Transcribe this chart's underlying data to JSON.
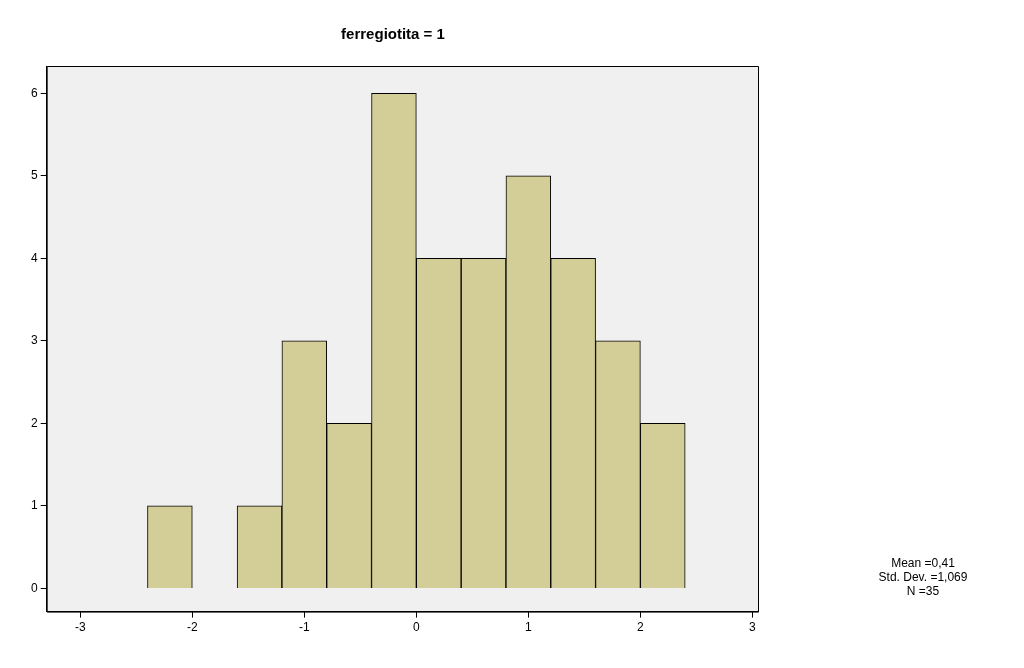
{
  "chart_data": {
    "type": "histogram",
    "title": "ferregiotita = 1",
    "bins": [
      -2.4,
      -2.0,
      -1.6,
      -1.2,
      -0.8,
      -0.4,
      0,
      0.4,
      0.8,
      1.2,
      1.6,
      2.0,
      2.4
    ],
    "values": [
      1,
      0,
      1,
      3,
      2,
      6,
      4,
      4,
      5,
      4,
      3,
      2
    ],
    "color": "#d3ce97",
    "xlim": [
      -3.3,
      3.05
    ],
    "xticks": [
      -3,
      -2,
      -1,
      0,
      1,
      2,
      3
    ],
    "ylim": [
      -0.28,
      6.33
    ],
    "yticks": [
      0,
      1,
      2,
      3,
      4,
      5,
      6
    ],
    "grid": false,
    "legend": false,
    "annotations": [
      "Mean =0,41",
      "Std. Dev. =1,069",
      "N =35"
    ]
  }
}
